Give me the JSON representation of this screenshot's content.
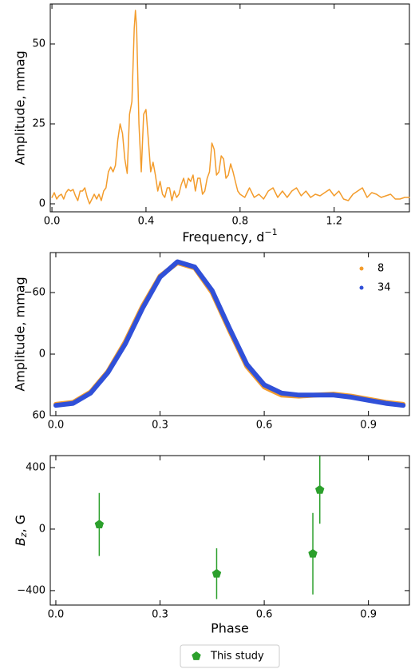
{
  "chart_data": [
    {
      "type": "line",
      "color": "#f39c2c",
      "xlabel": [
        "Frequency, d",
        "−1"
      ],
      "ylabel": "Amplitude, mmag",
      "x": [
        0.0,
        0.01,
        0.02,
        0.03,
        0.04,
        0.05,
        0.06,
        0.07,
        0.08,
        0.09,
        0.1,
        0.11,
        0.12,
        0.13,
        0.14,
        0.15,
        0.16,
        0.17,
        0.18,
        0.19,
        0.2,
        0.21,
        0.22,
        0.23,
        0.24,
        0.25,
        0.26,
        0.27,
        0.28,
        0.29,
        0.3,
        0.31,
        0.32,
        0.33,
        0.34,
        0.35,
        0.355,
        0.36,
        0.37,
        0.38,
        0.39,
        0.4,
        0.41,
        0.42,
        0.43,
        0.44,
        0.45,
        0.46,
        0.47,
        0.48,
        0.49,
        0.5,
        0.51,
        0.52,
        0.53,
        0.54,
        0.55,
        0.56,
        0.57,
        0.58,
        0.59,
        0.6,
        0.61,
        0.62,
        0.63,
        0.64,
        0.65,
        0.66,
        0.67,
        0.68,
        0.69,
        0.7,
        0.71,
        0.72,
        0.73,
        0.74,
        0.75,
        0.76,
        0.77,
        0.78,
        0.79,
        0.8,
        0.82,
        0.84,
        0.86,
        0.88,
        0.9,
        0.92,
        0.94,
        0.96,
        0.98,
        1.0,
        1.02,
        1.04,
        1.06,
        1.08,
        1.1,
        1.12,
        1.14,
        1.16,
        1.18,
        1.2,
        1.22,
        1.24,
        1.26,
        1.28,
        1.3,
        1.32,
        1.34,
        1.36,
        1.38,
        1.4,
        1.42,
        1.44,
        1.46,
        1.48,
        1.5,
        1.52
      ],
      "values": [
        2,
        3.5,
        1.5,
        2.5,
        3,
        1.5,
        3.5,
        4.5,
        4,
        4.5,
        2.5,
        1,
        4,
        4,
        5,
        2,
        0,
        1.5,
        3,
        1.5,
        3,
        1,
        4,
        5,
        10,
        11.5,
        10,
        12,
        20,
        25,
        22,
        14,
        9.5,
        28,
        32,
        55,
        60.5,
        55,
        25,
        10,
        28,
        29.5,
        20,
        10,
        13,
        9,
        4,
        7,
        3,
        2,
        5,
        5,
        1,
        4,
        2,
        3,
        6,
        8,
        5,
        8,
        7,
        9,
        4,
        8,
        8,
        3,
        4,
        8,
        10,
        19,
        17,
        9,
        10,
        15,
        14,
        8,
        9,
        12.5,
        10,
        7,
        4,
        3,
        2,
        5,
        2,
        3,
        1.5,
        4,
        5,
        2,
        4,
        2,
        4,
        5,
        2.5,
        4,
        2,
        3,
        2.5,
        3.5,
        4.5,
        2.5,
        4,
        1.5,
        1,
        3,
        4,
        5,
        2,
        3.5,
        3,
        2,
        2.5,
        3,
        1.5,
        1.5,
        2,
        2
      ],
      "xlim": [
        -0.007,
        1.52
      ],
      "ylim": [
        -2.5,
        62.5
      ],
      "xticks": [
        {
          "value": 0,
          "label": "0.0"
        },
        0.4,
        0.8,
        1.2
      ],
      "yticks": [
        0,
        25,
        50
      ]
    },
    {
      "type": "line",
      "ylabel": "Amplitude, mmag",
      "legend": "upper right",
      "x": [
        0,
        0.05,
        0.1,
        0.15,
        0.2,
        0.25,
        0.3,
        0.35,
        0.4,
        0.45,
        0.5,
        0.55,
        0.6,
        0.65,
        0.7,
        0.75,
        0.8,
        0.85,
        0.9,
        0.95,
        1.0
      ],
      "series": [
        {
          "name": "8",
          "color": "#f39c2c",
          "values": [
            49,
            47,
            37,
            17,
            -12,
            -47,
            -76,
            -89,
            -84,
            -60,
            -23,
            12,
            32,
            40,
            41,
            40,
            39,
            41,
            44,
            47,
            49
          ]
        },
        {
          "name": "34",
          "color": "#3050d8",
          "values": [
            50,
            48,
            38,
            18,
            -10,
            -45,
            -75,
            -90,
            -85,
            -62,
            -25,
            10,
            30,
            38,
            40,
            40,
            40,
            42,
            45,
            48,
            50
          ]
        }
      ],
      "xlim": [
        -0.016,
        1.018
      ],
      "ylim": [
        60,
        -99
      ],
      "xticks": [
        {
          "value": 0,
          "label": "0.0"
        },
        0.3,
        0.6,
        0.9
      ],
      "yticks": [
        {
          "value": -60,
          "label": "−60"
        },
        0,
        60
      ]
    },
    {
      "type": "scatter",
      "xlabel": "Phase",
      "ylabel": [
        "B",
        "z",
        ", G"
      ],
      "legend": "below",
      "x": [
        0.125,
        0.463,
        0.74,
        0.76
      ],
      "series": [
        {
          "name": "This study",
          "color": "#2ca02c",
          "values": [
            30,
            -290,
            -160,
            255
          ],
          "errors": [
            205,
            165,
            265,
            220
          ]
        }
      ],
      "xlim": [
        -0.016,
        1.018
      ],
      "ylim": [
        -494,
        478
      ],
      "xticks": [
        {
          "value": 0,
          "label": "0.0"
        },
        0.3,
        0.6,
        0.9
      ],
      "yticks": [
        {
          "value": -400,
          "label": "−400"
        },
        0,
        400
      ]
    }
  ]
}
